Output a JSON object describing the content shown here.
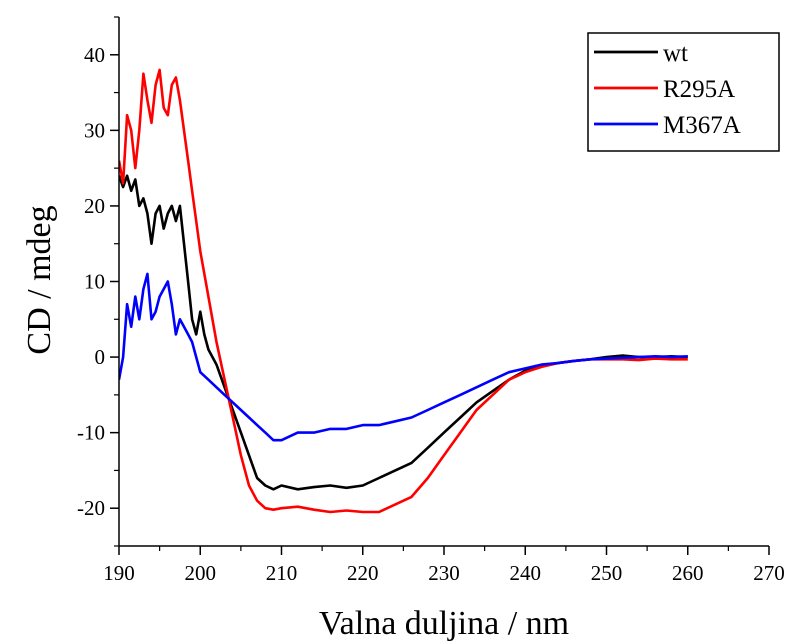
{
  "chart_data": {
    "type": "line",
    "title": "",
    "xlabel": "Valna duljina / nm",
    "ylabel": "CD / mdeg",
    "xlim": [
      190,
      270
    ],
    "ylim": [
      -25,
      45
    ],
    "x_ticks": [
      190,
      200,
      210,
      220,
      230,
      240,
      250,
      260,
      270
    ],
    "y_ticks": [
      -20,
      -10,
      0,
      10,
      20,
      30,
      40
    ],
    "grid": false,
    "legend_position": "top-right",
    "series": [
      {
        "name": "wt",
        "color": "#000000",
        "x": [
          190,
          190.5,
          191,
          191.5,
          192,
          192.5,
          193,
          193.5,
          194,
          194.5,
          195,
          195.5,
          196,
          196.5,
          197,
          197.5,
          198,
          198.5,
          199,
          199.5,
          200,
          200.5,
          201,
          202,
          203,
          204,
          205,
          206,
          207,
          208,
          209,
          210,
          212,
          214,
          216,
          218,
          220,
          222,
          224,
          226,
          228,
          230,
          232,
          234,
          236,
          238,
          240,
          242,
          244,
          246,
          248,
          250,
          252,
          254,
          256,
          258,
          260
        ],
        "y": [
          24,
          22.5,
          24,
          22,
          23.5,
          20,
          21,
          19,
          15,
          19,
          20,
          17,
          19,
          20,
          18,
          20,
          15,
          10,
          5,
          3,
          6,
          3,
          1,
          -1,
          -4,
          -7,
          -10,
          -13,
          -16,
          -17,
          -17.5,
          -17,
          -17.5,
          -17.2,
          -17,
          -17.3,
          -17,
          -16,
          -15,
          -14,
          -12,
          -10,
          -8,
          -6,
          -4.5,
          -3,
          -1.8,
          -1.2,
          -0.8,
          -0.5,
          -0.3,
          0,
          0.2,
          0,
          0,
          0.1,
          0
        ]
      },
      {
        "name": "R295A",
        "color": "#ff0000",
        "x": [
          190,
          190.5,
          191,
          191.5,
          192,
          192.5,
          193,
          193.5,
          194,
          194.5,
          195,
          195.5,
          196,
          196.5,
          197,
          197.5,
          198,
          198.5,
          199,
          199.5,
          200,
          201,
          202,
          203,
          204,
          205,
          206,
          207,
          208,
          209,
          210,
          212,
          214,
          216,
          218,
          220,
          222,
          224,
          226,
          228,
          230,
          232,
          234,
          236,
          238,
          240,
          242,
          244,
          246,
          248,
          250,
          252,
          254,
          256,
          258,
          260
        ],
        "y": [
          26,
          23,
          32,
          30,
          25,
          30,
          37.5,
          34,
          31,
          36,
          38,
          33,
          32,
          36,
          37,
          34,
          30,
          26,
          22,
          18,
          14,
          8,
          2,
          -3,
          -8,
          -13,
          -17,
          -19,
          -20,
          -20.2,
          -20,
          -19.8,
          -20.2,
          -20.5,
          -20.3,
          -20.5,
          -20.5,
          -19.5,
          -18.5,
          -16,
          -13,
          -10,
          -7,
          -5,
          -3,
          -2,
          -1.3,
          -0.8,
          -0.5,
          -0.3,
          -0.3,
          -0.3,
          -0.4,
          -0.2,
          -0.3,
          -0.3
        ]
      },
      {
        "name": "M367A",
        "color": "#0000ff",
        "x": [
          190,
          190.5,
          191,
          191.5,
          192,
          192.5,
          193,
          193.5,
          194,
          194.5,
          195,
          195.5,
          196,
          196.5,
          197,
          197.5,
          198,
          198.5,
          199,
          199.5,
          200,
          201,
          202,
          203,
          204,
          205,
          206,
          207,
          208,
          209,
          210,
          212,
          214,
          216,
          218,
          220,
          222,
          224,
          226,
          228,
          230,
          232,
          234,
          236,
          238,
          240,
          242,
          244,
          246,
          248,
          250,
          252,
          254,
          256,
          258,
          260
        ],
        "y": [
          -3,
          0,
          7,
          4,
          8,
          5,
          9,
          11,
          5,
          6,
          8,
          9,
          10,
          7,
          3,
          5,
          4,
          3,
          2,
          0,
          -2,
          -3,
          -4,
          -5,
          -6,
          -7,
          -8,
          -9,
          -10,
          -11,
          -11,
          -10,
          -10,
          -9.5,
          -9.5,
          -9,
          -9,
          -8.5,
          -8,
          -7,
          -6,
          -5,
          -4,
          -3,
          -2,
          -1.5,
          -1,
          -0.8,
          -0.5,
          -0.3,
          -0.2,
          -0.1,
          0,
          0.1,
          0,
          0.1
        ]
      }
    ]
  }
}
